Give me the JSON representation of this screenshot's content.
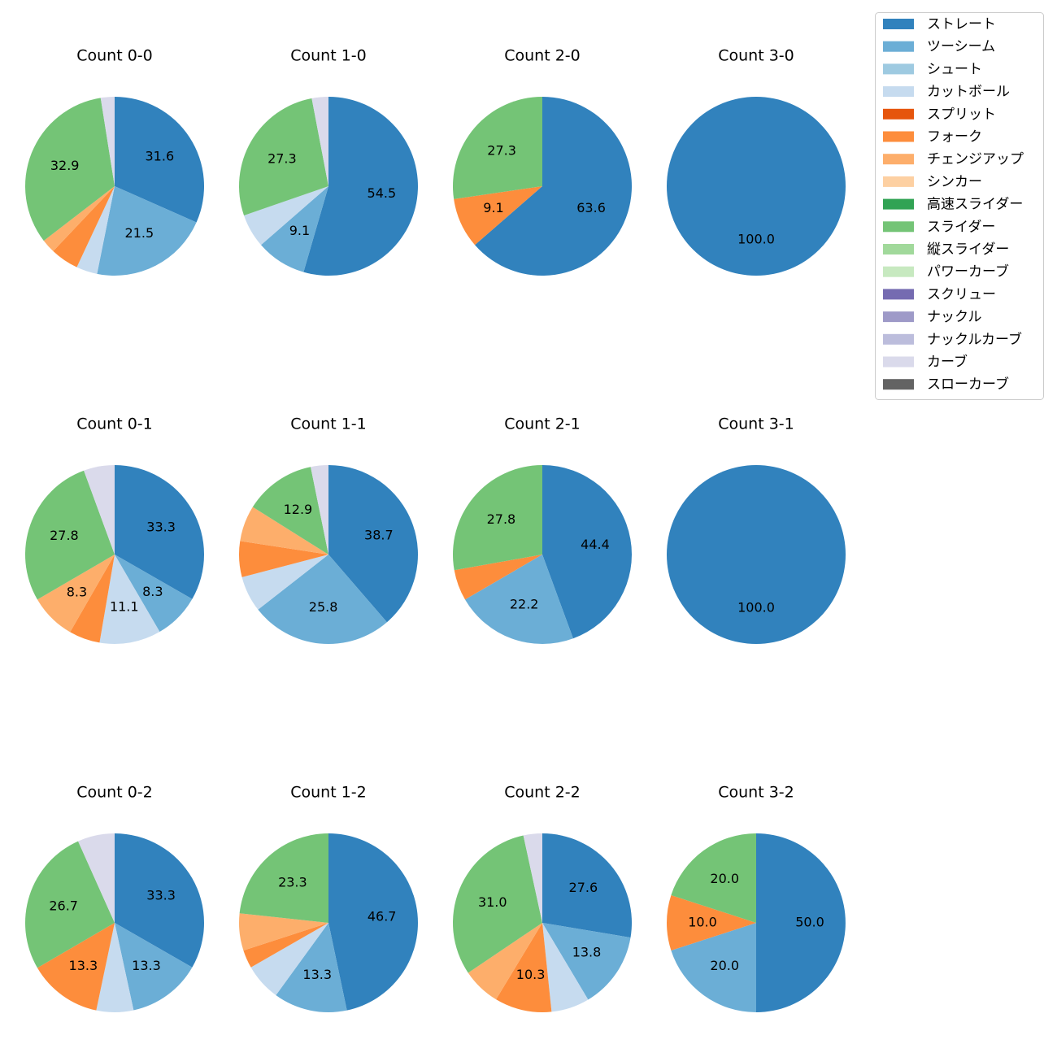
{
  "legend": [
    {
      "name": "ストレート",
      "color": "#3182bd"
    },
    {
      "name": "ツーシーム",
      "color": "#6baed6"
    },
    {
      "name": "シュート",
      "color": "#9ecae1"
    },
    {
      "name": "カットボール",
      "color": "#c6dbef"
    },
    {
      "name": "スプリット",
      "color": "#e6550d"
    },
    {
      "name": "フォーク",
      "color": "#fd8d3c"
    },
    {
      "name": "チェンジアップ",
      "color": "#fdae6b"
    },
    {
      "name": "シンカー",
      "color": "#fdd0a2"
    },
    {
      "name": "高速スライダー",
      "color": "#31a354"
    },
    {
      "name": "スライダー",
      "color": "#74c476"
    },
    {
      "name": "縦スライダー",
      "color": "#a1d99b"
    },
    {
      "name": "パワーカーブ",
      "color": "#c7e9c0"
    },
    {
      "name": "スクリュー",
      "color": "#756bb1"
    },
    {
      "name": "ナックル",
      "color": "#9e9ac8"
    },
    {
      "name": "ナックルカーブ",
      "color": "#bcbddc"
    },
    {
      "name": "カーブ",
      "color": "#dadaeb"
    },
    {
      "name": "スローカーブ",
      "color": "#636363"
    }
  ],
  "chart_data": [
    {
      "type": "pie",
      "title": "Count 0-0",
      "slices": [
        {
          "name": "ストレート",
          "value": 31.6,
          "label": "31.6"
        },
        {
          "name": "ツーシーム",
          "value": 21.5,
          "label": "21.5"
        },
        {
          "name": "カットボール",
          "value": 3.8
        },
        {
          "name": "フォーク",
          "value": 5.1
        },
        {
          "name": "チェンジアップ",
          "value": 2.5
        },
        {
          "name": "スライダー",
          "value": 32.9,
          "label": "32.9"
        },
        {
          "name": "カーブ",
          "value": 2.5
        }
      ]
    },
    {
      "type": "pie",
      "title": "Count 1-0",
      "slices": [
        {
          "name": "ストレート",
          "value": 54.5,
          "label": "54.5"
        },
        {
          "name": "ツーシーム",
          "value": 9.1,
          "label": "9.1"
        },
        {
          "name": "カットボール",
          "value": 6.1
        },
        {
          "name": "スライダー",
          "value": 27.3,
          "label": "27.3"
        },
        {
          "name": "カーブ",
          "value": 3.0
        }
      ]
    },
    {
      "type": "pie",
      "title": "Count 2-0",
      "slices": [
        {
          "name": "ストレート",
          "value": 63.6,
          "label": "63.6"
        },
        {
          "name": "フォーク",
          "value": 9.1,
          "label": "9.1"
        },
        {
          "name": "スライダー",
          "value": 27.3,
          "label": "27.3"
        }
      ]
    },
    {
      "type": "pie",
      "title": "Count 3-0",
      "slices": [
        {
          "name": "ストレート",
          "value": 100.0,
          "label": "100.0"
        }
      ]
    },
    {
      "type": "pie",
      "title": "Count 0-1",
      "slices": [
        {
          "name": "ストレート",
          "value": 33.3,
          "label": "33.3"
        },
        {
          "name": "ツーシーム",
          "value": 8.3,
          "label": "8.3"
        },
        {
          "name": "カットボール",
          "value": 11.1,
          "label": "11.1"
        },
        {
          "name": "フォーク",
          "value": 5.6
        },
        {
          "name": "チェンジアップ",
          "value": 8.3,
          "label": "8.3"
        },
        {
          "name": "スライダー",
          "value": 27.8,
          "label": "27.8"
        },
        {
          "name": "カーブ",
          "value": 5.6
        }
      ]
    },
    {
      "type": "pie",
      "title": "Count 1-1",
      "slices": [
        {
          "name": "ストレート",
          "value": 38.7,
          "label": "38.7"
        },
        {
          "name": "ツーシーム",
          "value": 25.8,
          "label": "25.8"
        },
        {
          "name": "カットボール",
          "value": 6.5
        },
        {
          "name": "フォーク",
          "value": 6.5
        },
        {
          "name": "チェンジアップ",
          "value": 6.5
        },
        {
          "name": "スライダー",
          "value": 12.9,
          "label": "12.9"
        },
        {
          "name": "カーブ",
          "value": 3.2
        }
      ]
    },
    {
      "type": "pie",
      "title": "Count 2-1",
      "slices": [
        {
          "name": "ストレート",
          "value": 44.4,
          "label": "44.4"
        },
        {
          "name": "ツーシーム",
          "value": 22.2,
          "label": "22.2"
        },
        {
          "name": "フォーク",
          "value": 5.6
        },
        {
          "name": "スライダー",
          "value": 27.8,
          "label": "27.8"
        }
      ]
    },
    {
      "type": "pie",
      "title": "Count 3-1",
      "slices": [
        {
          "name": "ストレート",
          "value": 100.0,
          "label": "100.0"
        }
      ]
    },
    {
      "type": "pie",
      "title": "Count 0-2",
      "slices": [
        {
          "name": "ストレート",
          "value": 33.3,
          "label": "33.3"
        },
        {
          "name": "ツーシーム",
          "value": 13.3,
          "label": "13.3"
        },
        {
          "name": "カットボール",
          "value": 6.7
        },
        {
          "name": "フォーク",
          "value": 13.3,
          "label": "13.3"
        },
        {
          "name": "スライダー",
          "value": 26.7,
          "label": "26.7"
        },
        {
          "name": "カーブ",
          "value": 6.7
        }
      ]
    },
    {
      "type": "pie",
      "title": "Count 1-2",
      "slices": [
        {
          "name": "ストレート",
          "value": 46.7,
          "label": "46.7"
        },
        {
          "name": "ツーシーム",
          "value": 13.3,
          "label": "13.3"
        },
        {
          "name": "カットボール",
          "value": 6.7
        },
        {
          "name": "フォーク",
          "value": 3.3
        },
        {
          "name": "チェンジアップ",
          "value": 6.7
        },
        {
          "name": "スライダー",
          "value": 23.3,
          "label": "23.3"
        }
      ]
    },
    {
      "type": "pie",
      "title": "Count 2-2",
      "slices": [
        {
          "name": "ストレート",
          "value": 27.6,
          "label": "27.6"
        },
        {
          "name": "ツーシーム",
          "value": 13.8,
          "label": "13.8"
        },
        {
          "name": "カットボール",
          "value": 6.9
        },
        {
          "name": "フォーク",
          "value": 10.3,
          "label": "10.3"
        },
        {
          "name": "チェンジアップ",
          "value": 6.9
        },
        {
          "name": "スライダー",
          "value": 31.0,
          "label": "31.0"
        },
        {
          "name": "カーブ",
          "value": 3.4
        }
      ]
    },
    {
      "type": "pie",
      "title": "Count 3-2",
      "slices": [
        {
          "name": "ストレート",
          "value": 50.0,
          "label": "50.0"
        },
        {
          "name": "ツーシーム",
          "value": 20.0,
          "label": "20.0"
        },
        {
          "name": "フォーク",
          "value": 10.0,
          "label": "10.0"
        },
        {
          "name": "スライダー",
          "value": 20.0,
          "label": "20.0"
        }
      ]
    }
  ]
}
